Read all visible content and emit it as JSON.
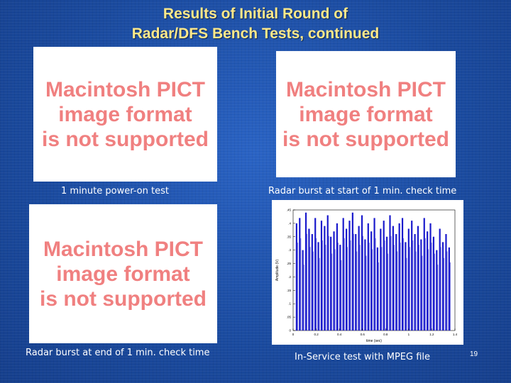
{
  "slide": {
    "title_line1": "Results of Initial Round of",
    "title_line2": "Radar/DFS Bench Tests, continued",
    "slide_number": "19"
  },
  "placeholder": {
    "line1": "Macintosh PICT",
    "line2": "image format",
    "line3": "is not supported"
  },
  "captions": {
    "top_left": "1 minute power-on test",
    "top_right": "Radar burst at start of 1 min. check time",
    "bottom_left": "Radar burst at end of 1 min. check time",
    "bottom_right": "In-Service test with MPEG file"
  },
  "colors": {
    "title": "#ffe98a",
    "placeholder_text": "#f08080",
    "plot_series": "#1a1acc"
  },
  "chart_data": {
    "type": "line",
    "title": "",
    "xlabel": "time (sec)",
    "ylabel": "Amplitude (V)",
    "xlim": [
      0,
      1.4
    ],
    "ylim": [
      0,
      0.45
    ],
    "x_ticks": [
      "0",
      "0.2",
      "0.4",
      "0.6",
      "0.8",
      "1",
      "1.2",
      "1.4"
    ],
    "y_ticks": [
      "0",
      ".05",
      ".1",
      ".15",
      ".2",
      ".25",
      ".3",
      ".35",
      ".4",
      ".45"
    ],
    "series": [
      {
        "values": [
          0.4,
          0.42,
          0.3,
          0.44,
          0.38,
          0.36,
          0.42,
          0.33,
          0.41,
          0.39,
          0.43,
          0.35,
          0.37,
          0.4,
          0.32,
          0.42,
          0.38,
          0.41,
          0.44,
          0.36,
          0.39,
          0.43,
          0.34,
          0.4,
          0.37,
          0.42,
          0.31,
          0.38,
          0.41,
          0.35,
          0.43,
          0.39,
          0.36,
          0.4,
          0.42,
          0.33,
          0.38,
          0.41,
          0.36,
          0.39,
          0.34,
          0.42,
          0.37,
          0.4,
          0.35,
          0.3,
          0.38,
          0.33,
          0.36,
          0.31
        ]
      }
    ]
  }
}
